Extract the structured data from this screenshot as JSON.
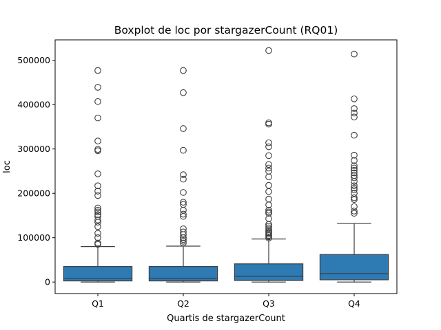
{
  "chart_data": {
    "type": "boxplot",
    "title": "Boxplot de loc por stargazerCount (RQ01)",
    "xlabel": "Quartis de stargazerCount",
    "ylabel": "loc",
    "ylim": [
      -26000,
      546000
    ],
    "yticks": [
      0,
      100000,
      200000,
      300000,
      400000,
      500000
    ],
    "ytick_labels": [
      "0",
      "100000",
      "200000",
      "300000",
      "400000",
      "500000"
    ],
    "categories": [
      "Q1",
      "Q2",
      "Q3",
      "Q4"
    ],
    "box_color": "#2e7ab3",
    "line_color": "#3d3d3d",
    "boxes": [
      {
        "category": "Q1",
        "whisker_low": 0,
        "q1": 2500,
        "median": 8000,
        "q3": 35000,
        "whisker_high": 80000,
        "outliers": [
          85000,
          88000,
          100000,
          110000,
          125000,
          135000,
          140000,
          148000,
          152000,
          158000,
          162000,
          167000,
          195000,
          205000,
          217000,
          244000,
          296000,
          299000,
          318000,
          370000,
          407000,
          439000,
          477000
        ]
      },
      {
        "category": "Q2",
        "whisker_low": 0,
        "q1": 2500,
        "median": 8500,
        "q3": 35000,
        "whisker_high": 81000,
        "outliers": [
          88000,
          92000,
          96000,
          100000,
          107000,
          113000,
          120000,
          148000,
          153000,
          162000,
          175000,
          180000,
          202000,
          232000,
          242000,
          297000,
          346000,
          427000,
          477000
        ]
      },
      {
        "category": "Q3",
        "whisker_low": 0,
        "q1": 3500,
        "median": 13000,
        "q3": 41000,
        "whisker_high": 97000,
        "outliers": [
          99000,
          102000,
          105000,
          108000,
          111000,
          114000,
          118000,
          122000,
          126000,
          130000,
          143000,
          155000,
          158000,
          162000,
          174000,
          187000,
          204000,
          218000,
          237000,
          250000,
          257000,
          265000,
          285000,
          305000,
          314000,
          356000,
          359000,
          522000
        ]
      },
      {
        "category": "Q4",
        "whisker_low": 0,
        "q1": 5000,
        "median": 19000,
        "q3": 62000,
        "whisker_high": 132000,
        "outliers": [
          155000,
          160000,
          170000,
          186000,
          190000,
          200000,
          208000,
          212000,
          217000,
          227000,
          235000,
          240000,
          246000,
          252000,
          257000,
          262000,
          274000,
          286000,
          331000,
          372000,
          381000,
          391000,
          413000,
          514000
        ]
      }
    ]
  }
}
